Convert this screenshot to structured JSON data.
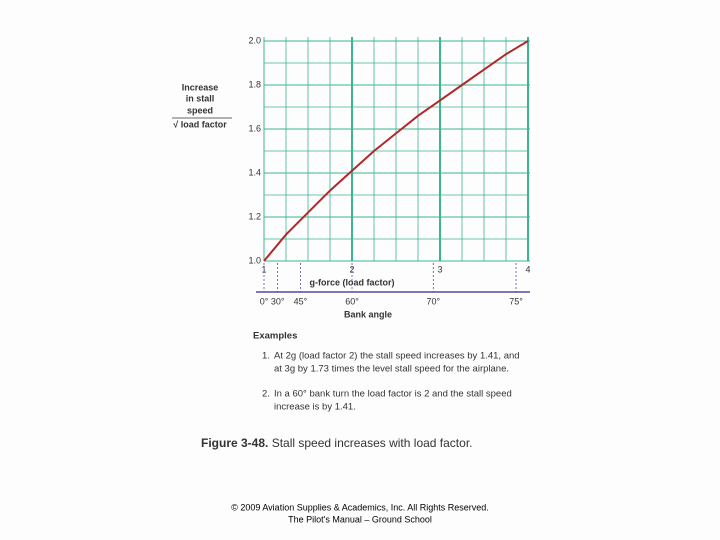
{
  "chart_data": {
    "type": "line",
    "ylabel": [
      "Increase",
      "in stall",
      "speed",
      "√ load factor"
    ],
    "xlabel": "g-force (load factor)",
    "x": [
      1,
      1.25,
      1.5,
      1.75,
      2,
      2.25,
      2.5,
      2.75,
      3,
      3.25,
      3.5,
      3.75,
      4
    ],
    "series": [
      {
        "color": "#b3262a",
        "values": [
          1.0,
          1.12,
          1.22,
          1.32,
          1.41,
          1.5,
          1.58,
          1.66,
          1.73,
          1.8,
          1.87,
          1.94,
          2.0
        ]
      }
    ],
    "xlim": [
      1,
      4
    ],
    "xticks": [
      1,
      2,
      3,
      4
    ],
    "ylim": [
      1,
      2
    ],
    "yticks": [
      {
        "value": 1,
        "label": "1.0"
      },
      {
        "value": 1.2,
        "label": "1.2"
      },
      {
        "value": 1.4,
        "label": "1.4"
      },
      {
        "value": 1.6,
        "label": "1.6"
      },
      {
        "value": 1.8,
        "label": "1.8"
      },
      {
        "value": 2,
        "label": "2.0"
      }
    ],
    "grid": true,
    "grid_color": "#3bb58e",
    "bank_axis_label": "Bank angle",
    "bank_ticks": [
      {
        "value": 1,
        "label": "0°"
      },
      {
        "value": 1.155,
        "label": "30°"
      },
      {
        "value": 1.414,
        "label": "45°"
      },
      {
        "value": 2,
        "label": "60°"
      },
      {
        "value": 2.924,
        "label": "70°"
      },
      {
        "value": 3.864,
        "label": "75°"
      }
    ]
  },
  "examples": {
    "heading": "Examples",
    "items": [
      [
        "1.",
        "At 2g (load factor 2) the stall speed increases by 1.41, and",
        "at 3g by 1.73 times the level stall speed for the airplane."
      ],
      [
        "2.",
        "In a 60° bank turn the load factor is 2 and the stall speed",
        "increase is by 1.41."
      ]
    ]
  },
  "caption": {
    "label": "Figure 3-48.",
    "text": "Stall speed increases with load factor."
  },
  "footer": [
    "© 2009 Aviation Supplies & Academics, Inc. All Rights Reserved.",
    "The Pilot's Manual – Ground School"
  ]
}
